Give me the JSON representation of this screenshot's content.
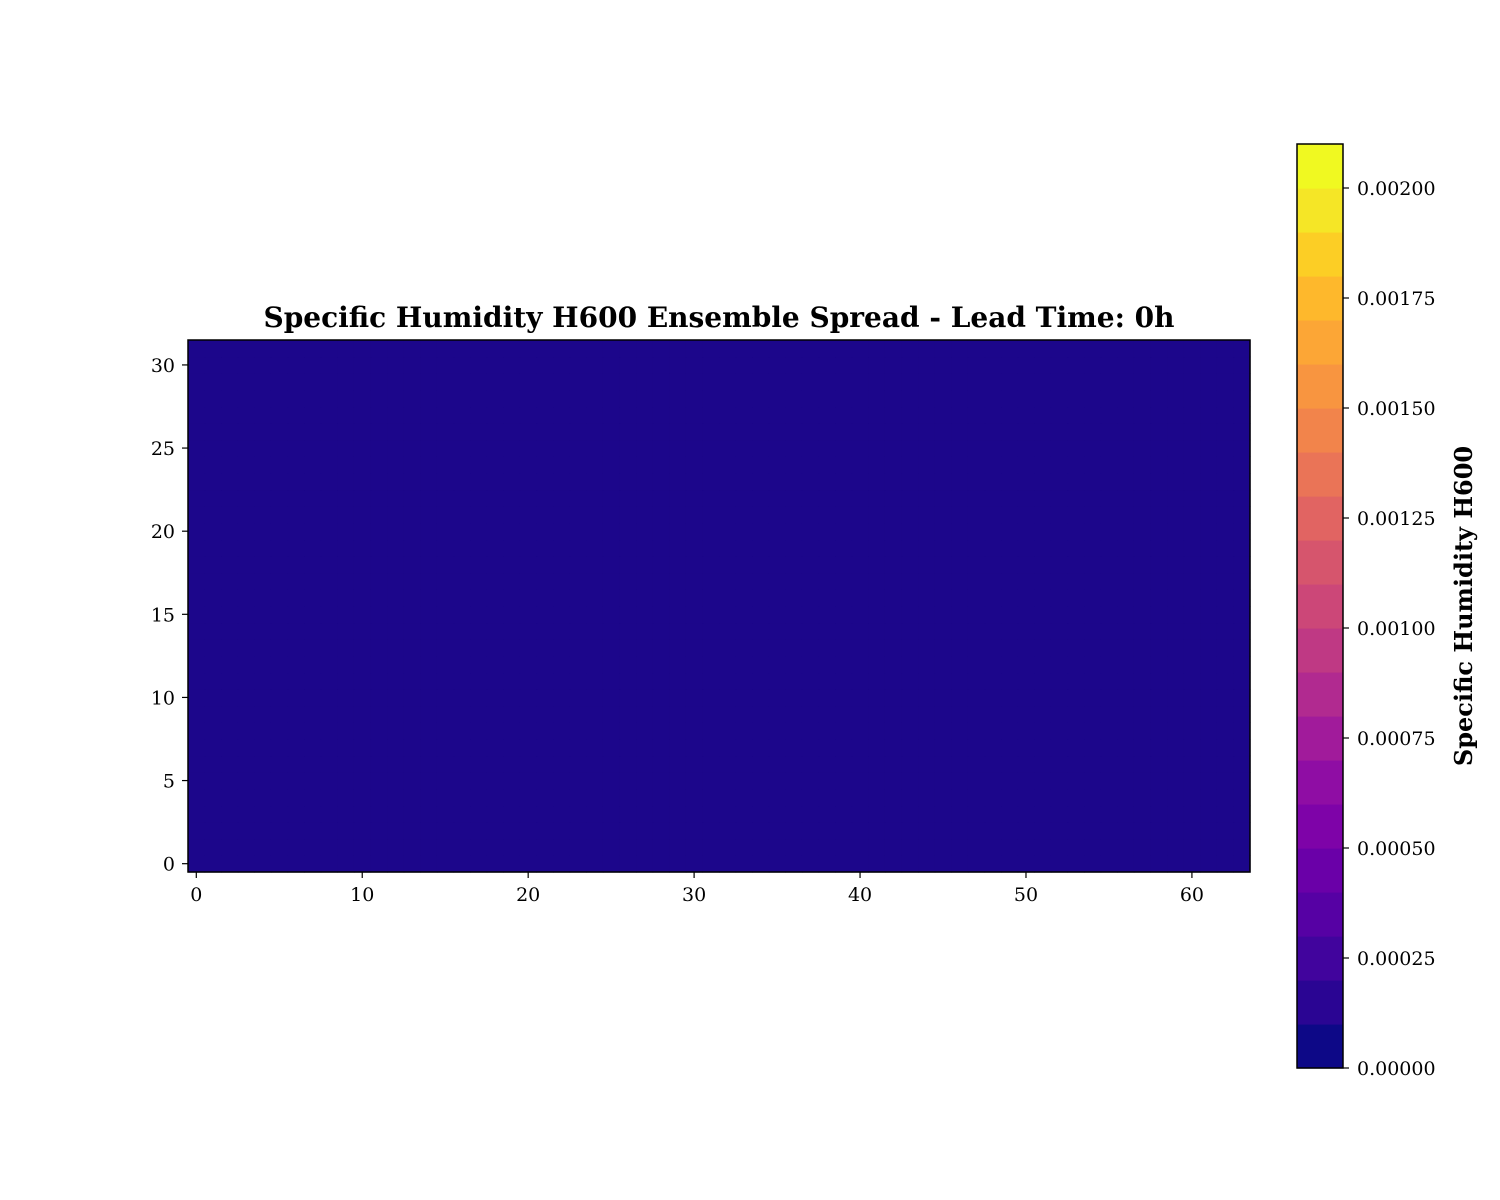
{
  "chart_data": {
    "type": "heatmap",
    "title": "Specific Humidity H600 Ensemble Spread - Lead Time: 0h",
    "xlabel": "",
    "ylabel": "",
    "grid": false,
    "xlim": [
      -0.5,
      63.5
    ],
    "ylim": [
      -0.5,
      31.5
    ],
    "x_ticks": [
      "0",
      "10",
      "20",
      "30",
      "40",
      "50",
      "60"
    ],
    "y_ticks": [
      "0",
      "5",
      "10",
      "15",
      "20",
      "25",
      "30"
    ],
    "field": {
      "nx": 64,
      "ny": 32,
      "uniform_value": 0.0
    },
    "colormap": "plasma",
    "colorbar": {
      "label": "Specific Humidity H600",
      "range": [
        0.0,
        0.0021
      ],
      "ticks": [
        "0.00000",
        "0.00025",
        "0.00050",
        "0.00075",
        "0.00100",
        "0.00125",
        "0.00150",
        "0.00175",
        "0.00200"
      ],
      "levels": [
        0.0,
        0.0001,
        0.0002,
        0.0003,
        0.0004,
        0.0005,
        0.0006,
        0.0007,
        0.0008,
        0.0009,
        0.001,
        0.0011,
        0.0012,
        0.0013,
        0.0014,
        0.0015,
        0.0016,
        0.0017,
        0.0018,
        0.0019,
        0.002,
        0.0021
      ],
      "colors": [
        "#0d0887",
        "#2a0593",
        "#41049d",
        "#5601a4",
        "#6a00a8",
        "#7e03a8",
        "#8f0da4",
        "#a11b9b",
        "#b12a90",
        "#bf3984",
        "#cc4778",
        "#d6556d",
        "#e16462",
        "#ea7457",
        "#f2844b",
        "#f89540",
        "#fca636",
        "#feb82c",
        "#fcce25",
        "#f5e626",
        "#f0f921"
      ]
    },
    "field_color": "#1c068b"
  }
}
